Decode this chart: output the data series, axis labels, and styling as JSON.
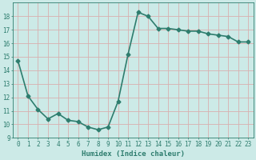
{
  "x": [
    0,
    1,
    2,
    3,
    4,
    5,
    6,
    7,
    8,
    9,
    10,
    11,
    12,
    13,
    14,
    15,
    16,
    17,
    18,
    19,
    20,
    21,
    22,
    23
  ],
  "y": [
    14.7,
    12.1,
    11.1,
    10.4,
    10.8,
    10.3,
    10.2,
    9.8,
    9.6,
    9.8,
    11.7,
    15.2,
    18.3,
    18.0,
    17.1,
    17.1,
    17.0,
    16.9,
    16.9,
    16.7,
    16.6,
    16.5,
    16.1,
    16.1
  ],
  "line_color": "#2e7d6e",
  "marker": "D",
  "marker_size": 2.5,
  "bg_color": "#cceae7",
  "grid_color": "#d8b0b0",
  "xlabel": "Humidex (Indice chaleur)",
  "ylim": [
    9,
    19
  ],
  "xlim": [
    -0.5,
    23.5
  ],
  "yticks": [
    9,
    10,
    11,
    12,
    13,
    14,
    15,
    16,
    17,
    18
  ],
  "xticks": [
    0,
    1,
    2,
    3,
    4,
    5,
    6,
    7,
    8,
    9,
    10,
    11,
    12,
    13,
    14,
    15,
    16,
    17,
    18,
    19,
    20,
    21,
    22,
    23
  ],
  "font_color": "#2e7d6e",
  "axis_color": "#2e7d6e",
  "linewidth": 1.2,
  "tick_fontsize": 5.5,
  "xlabel_fontsize": 6.5
}
